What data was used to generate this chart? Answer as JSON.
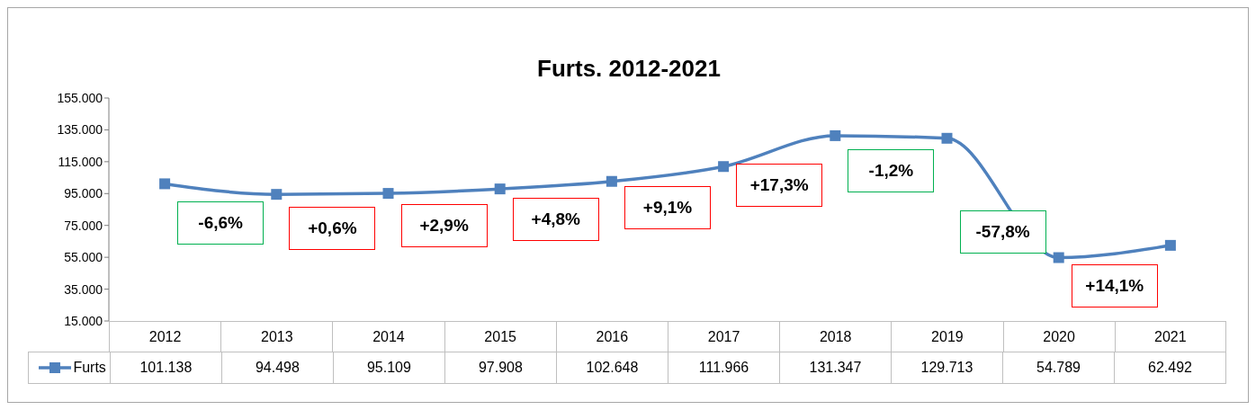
{
  "chart_data": {
    "type": "line",
    "title": "Furts. 2012-2021",
    "categories": [
      "2012",
      "2013",
      "2014",
      "2015",
      "2016",
      "2017",
      "2018",
      "2019",
      "2020",
      "2021"
    ],
    "series": [
      {
        "name": "Furts",
        "color": "#4f81bd",
        "values": [
          101138,
          94498,
          95109,
          97908,
          102648,
          111966,
          131347,
          129713,
          54789,
          62492
        ],
        "value_labels": [
          "101.138",
          "94.498",
          "95.109",
          "97.908",
          "102.648",
          "111.966",
          "131.347",
          "129.713",
          "54.789",
          "62.492"
        ]
      }
    ],
    "ylim": [
      15000,
      155000
    ],
    "yticks": [
      {
        "value": 15000,
        "label": "15.000"
      },
      {
        "value": 35000,
        "label": "35.000"
      },
      {
        "value": 55000,
        "label": "55.000"
      },
      {
        "value": 75000,
        "label": "75.000"
      },
      {
        "value": 95000,
        "label": "95.000"
      },
      {
        "value": 115000,
        "label": "115.000"
      },
      {
        "value": 135000,
        "label": "135.000"
      },
      {
        "value": 155000,
        "label": "155.000"
      }
    ],
    "annotations": [
      "-6,6%",
      "+0,6%",
      "+2,9%",
      "+4,8%",
      "+9,1%",
      "+17,3%",
      "-1,2%",
      "-57,8%",
      "+14,1%"
    ],
    "marker": "square",
    "line_style": "solid",
    "grid": false,
    "legend": "bottom"
  }
}
